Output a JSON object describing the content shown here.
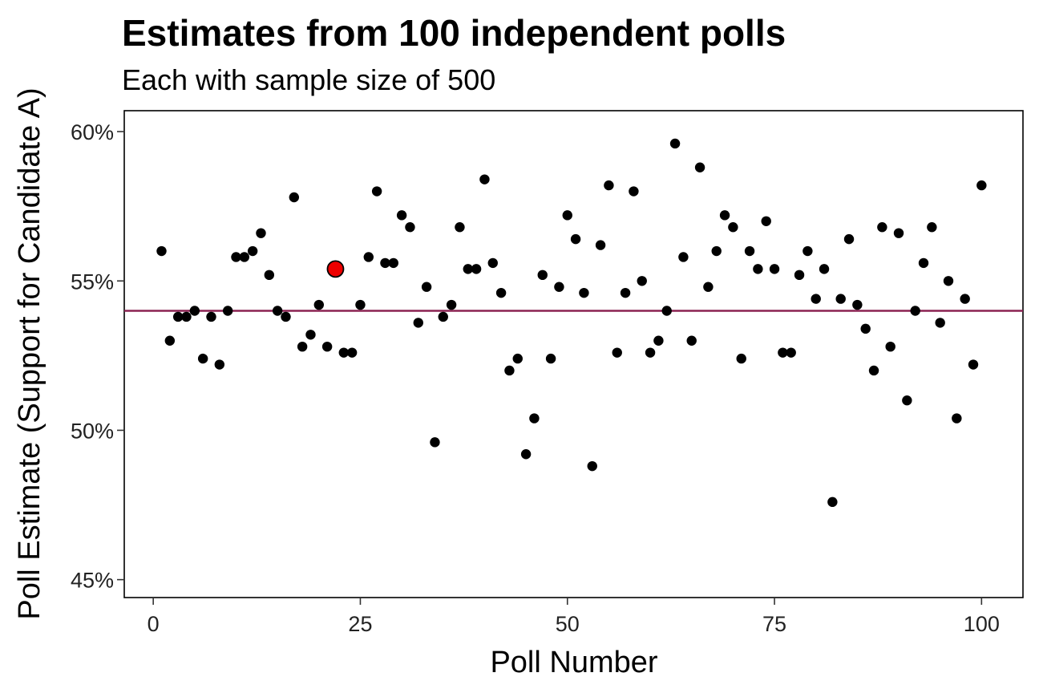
{
  "chart_data": {
    "type": "scatter",
    "title": "Estimates from 100 independent polls",
    "subtitle": "Each with sample size of 500",
    "xlabel": "Poll Number",
    "ylabel": "Poll Estimate (Support for Candidate A)",
    "xlim": [
      -3.5,
      105
    ],
    "ylim": [
      44.4,
      60.7
    ],
    "x_ticks": [
      0,
      25,
      50,
      75,
      100
    ],
    "y_ticks": [
      60,
      55,
      50,
      45
    ],
    "y_tick_labels": [
      "60%",
      "55%",
      "50%",
      "45%"
    ],
    "reference_line": {
      "y": 54,
      "color": "#8b2252"
    },
    "highlight": {
      "x": 22,
      "y": 55.4,
      "color": "#ee0000"
    },
    "grid": false,
    "point_color": "#000000",
    "x": [
      1,
      2,
      3,
      4,
      5,
      6,
      7,
      8,
      9,
      10,
      11,
      12,
      13,
      14,
      15,
      16,
      17,
      18,
      19,
      20,
      21,
      22,
      23,
      24,
      25,
      26,
      27,
      28,
      29,
      30,
      31,
      32,
      33,
      34,
      35,
      36,
      37,
      38,
      39,
      40,
      41,
      42,
      43,
      44,
      45,
      46,
      47,
      48,
      49,
      50,
      51,
      52,
      53,
      54,
      55,
      56,
      57,
      58,
      59,
      60,
      61,
      62,
      63,
      64,
      65,
      66,
      67,
      68,
      69,
      70,
      71,
      72,
      73,
      74,
      75,
      76,
      77,
      78,
      79,
      80,
      81,
      82,
      83,
      84,
      85,
      86,
      87,
      88,
      89,
      90,
      91,
      92,
      93,
      94,
      95,
      96,
      97,
      98,
      99,
      100
    ],
    "y": [
      56.0,
      53.0,
      53.8,
      53.8,
      54.0,
      52.4,
      53.8,
      52.2,
      54.0,
      55.8,
      55.8,
      56.0,
      56.6,
      55.2,
      54.0,
      53.8,
      57.8,
      52.8,
      53.2,
      54.2,
      52.8,
      55.4,
      52.6,
      52.6,
      54.2,
      55.8,
      58.0,
      55.6,
      55.6,
      57.2,
      56.8,
      53.6,
      54.8,
      49.6,
      53.8,
      54.2,
      56.8,
      55.4,
      55.4,
      58.4,
      55.6,
      54.6,
      52.0,
      52.4,
      49.2,
      50.4,
      55.2,
      52.4,
      54.8,
      57.2,
      56.4,
      54.6,
      48.8,
      56.2,
      58.2,
      52.6,
      54.6,
      58.0,
      55.0,
      52.6,
      53.0,
      54.0,
      59.6,
      55.8,
      53.0,
      58.8,
      54.8,
      56.0,
      57.2,
      56.8,
      52.4,
      56.0,
      55.4,
      57.0,
      55.4,
      52.6,
      52.6,
      55.2,
      56.0,
      54.4,
      55.4,
      47.6,
      54.4,
      56.4,
      54.2,
      53.4,
      52.0,
      56.8,
      52.8,
      56.6,
      51.0,
      54.0,
      55.6,
      56.8,
      53.6,
      55.0,
      50.4,
      54.4,
      52.2,
      58.2
    ]
  }
}
